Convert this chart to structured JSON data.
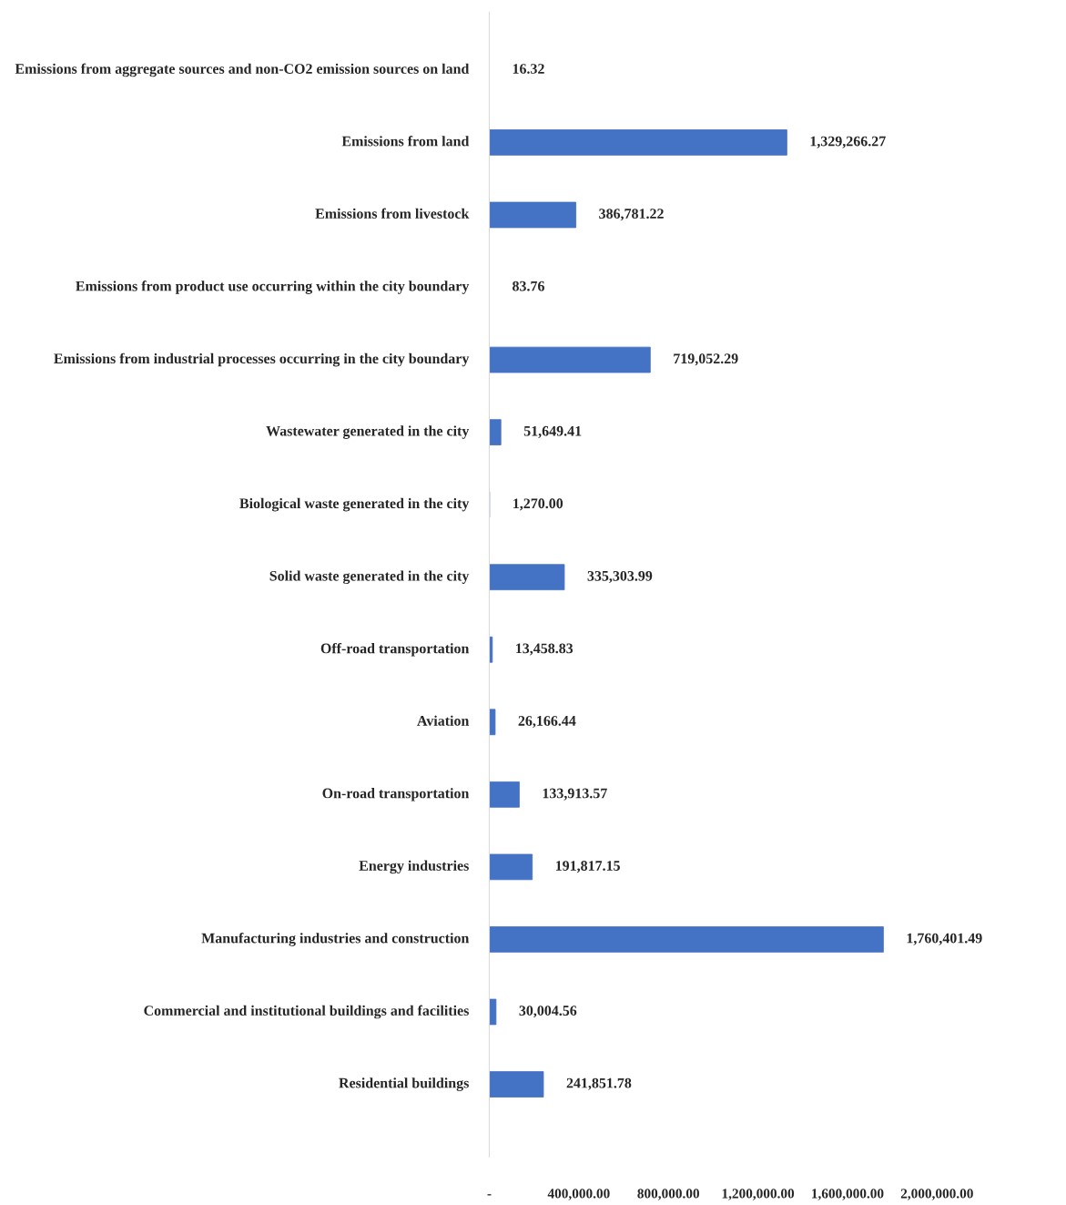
{
  "chart_data": {
    "type": "bar",
    "orientation": "horizontal",
    "categories": [
      "Emissions from aggregate sources and non-CO2 emission sources on land",
      "Emissions from land",
      "Emissions from livestock",
      "Emissions from product use occurring within the city boundary",
      "Emissions from industrial processes occurring in the city boundary",
      "Wastewater generated in the city",
      "Biological waste generated in the city",
      "Solid waste generated in the city",
      "Off-road transportation",
      "Aviation",
      "On-road transportation",
      "Energy industries",
      "Manufacturing industries and construction",
      "Commercial and institutional buildings and facilities",
      "Residential buildings"
    ],
    "values": [
      16.32,
      1329266.27,
      386781.22,
      83.76,
      719052.29,
      51649.41,
      1270.0,
      335303.99,
      13458.83,
      26166.44,
      133913.57,
      191817.15,
      1760401.49,
      30004.56,
      241851.78
    ],
    "color": "#4472c4",
    "xlim": [
      0,
      2000000
    ],
    "xticks": [
      {
        "value": 0,
        "label": "-"
      },
      {
        "value": 400000,
        "label": "400,000.00"
      },
      {
        "value": 800000,
        "label": "800,000.00"
      },
      {
        "value": 1200000,
        "label": "1,200,000.00"
      },
      {
        "value": 1600000,
        "label": "1,600,000.00"
      },
      {
        "value": 2000000,
        "label": "2,000,000.00"
      }
    ],
    "value_labels": [
      "16.32",
      "1,329,266.27",
      "386,781.22",
      "83.76",
      "719,052.29",
      "51,649.41",
      "1,270.00",
      "335,303.99",
      "13,458.83",
      "26,166.44",
      "133,913.57",
      "191,817.15",
      "1,760,401.49",
      "30,004.56",
      "241,851.78"
    ],
    "grid": false
  }
}
